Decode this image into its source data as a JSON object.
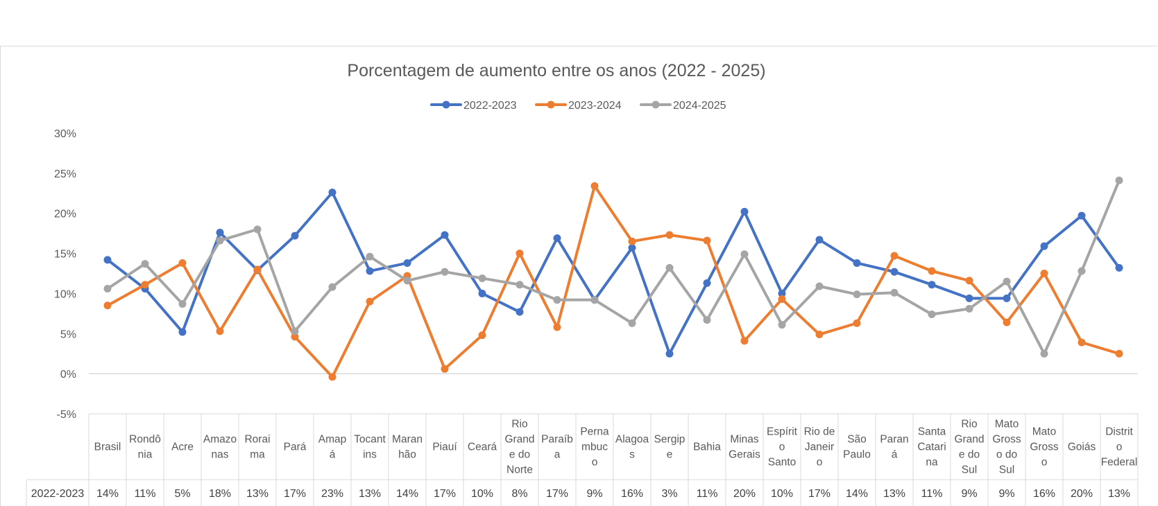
{
  "chart_data": {
    "type": "line",
    "title": "Porcentagem de aumento entre os anos (2022 - 2025)",
    "xlabel": "",
    "ylabel": "",
    "ylim": [
      -0.05,
      0.3
    ],
    "yticks": [
      -0.05,
      0,
      0.05,
      0.1,
      0.15,
      0.2,
      0.25,
      0.3
    ],
    "ytick_labels": [
      "-5%",
      "0%",
      "5%",
      "10%",
      "15%",
      "20%",
      "25%",
      "30%"
    ],
    "grid": "zero-line only",
    "legend_position": "top",
    "categories": [
      "Brasil",
      "Rondônia",
      "Acre",
      "Amazonas",
      "Roraima",
      "Pará",
      "Amapá",
      "Tocantins",
      "Maranhão",
      "Piauí",
      "Ceará",
      "Rio Grande do Norte",
      "Paraíba",
      "Pernambuco",
      "Alagoas",
      "Sergipe",
      "Bahia",
      "Minas Gerais",
      "Espírito Santo",
      "Rio de Janeiro",
      "São Paulo",
      "Paraná",
      "Santa Catarina",
      "Rio Grande do Sul",
      "Mato Grosso do Sul",
      "Mato Grosso",
      "Goiás",
      "Distrito Federal"
    ],
    "category_lines": [
      [
        "Brasil"
      ],
      [
        "Rondô",
        "nia"
      ],
      [
        "Acre"
      ],
      [
        "Amazo",
        "nas"
      ],
      [
        "Rorai",
        "ma"
      ],
      [
        "Pará"
      ],
      [
        "Amap",
        "á"
      ],
      [
        "Tocant",
        "ins"
      ],
      [
        "Maran",
        "hão"
      ],
      [
        "Piauí"
      ],
      [
        "Ceará"
      ],
      [
        "Rio",
        "Grand",
        "e do",
        "Norte"
      ],
      [
        "Paraíb",
        "a"
      ],
      [
        "Perna",
        "mbuc",
        "o"
      ],
      [
        "Alagoa",
        "s"
      ],
      [
        "Sergip",
        "e"
      ],
      [
        "Bahia"
      ],
      [
        "Minas",
        "Gerais"
      ],
      [
        "Espírit",
        "o",
        "Santo"
      ],
      [
        "Rio de",
        "Janeir",
        "o"
      ],
      [
        "São",
        "Paulo"
      ],
      [
        "Paran",
        "á"
      ],
      [
        "Santa",
        "Catari",
        "na"
      ],
      [
        "Rio",
        "Grand",
        "e do",
        "Sul"
      ],
      [
        "Mato",
        "Gross",
        "o do",
        "Sul"
      ],
      [
        "Mato",
        "Gross",
        "o"
      ],
      [
        "Goiás"
      ],
      [
        "Distrit",
        "o",
        "Federal"
      ]
    ],
    "series": [
      {
        "name": "2022-2023",
        "color": "#4472c4",
        "values": [
          0.142,
          0.106,
          0.052,
          0.176,
          0.129,
          0.172,
          0.226,
          0.128,
          0.138,
          0.173,
          0.1,
          0.077,
          0.169,
          0.092,
          0.157,
          0.025,
          0.113,
          0.202,
          0.1,
          0.167,
          0.138,
          0.127,
          0.111,
          0.094,
          0.094,
          0.159,
          0.197,
          0.132
        ],
        "table_values": [
          "14%",
          "11%",
          "5%",
          "18%",
          "13%",
          "17%",
          "23%",
          "13%",
          "14%",
          "17%",
          "10%",
          "8%",
          "17%",
          "9%",
          "16%",
          "3%",
          "11%",
          "20%",
          "10%",
          "17%",
          "14%",
          "13%",
          "11%",
          "9%",
          "9%",
          "16%",
          "20%",
          "13%"
        ]
      },
      {
        "name": "2023-2024",
        "color": "#ed7d31",
        "values": [
          0.085,
          0.111,
          0.138,
          0.053,
          0.13,
          0.046,
          -0.004,
          0.09,
          0.122,
          0.006,
          0.048,
          0.15,
          0.058,
          0.234,
          0.165,
          0.173,
          0.166,
          0.041,
          0.093,
          0.049,
          0.063,
          0.147,
          0.128,
          0.116,
          0.064,
          0.125,
          0.039,
          0.025
        ]
      },
      {
        "name": "2024-2025",
        "color": "#a5a5a5",
        "values": [
          0.106,
          0.137,
          0.087,
          0.166,
          0.18,
          0.053,
          0.108,
          0.146,
          0.116,
          0.127,
          0.119,
          0.111,
          0.092,
          0.092,
          0.063,
          0.132,
          0.067,
          0.149,
          0.061,
          0.109,
          0.099,
          0.101,
          0.074,
          0.081,
          0.115,
          0.025,
          0.128,
          0.241
        ]
      }
    ]
  }
}
